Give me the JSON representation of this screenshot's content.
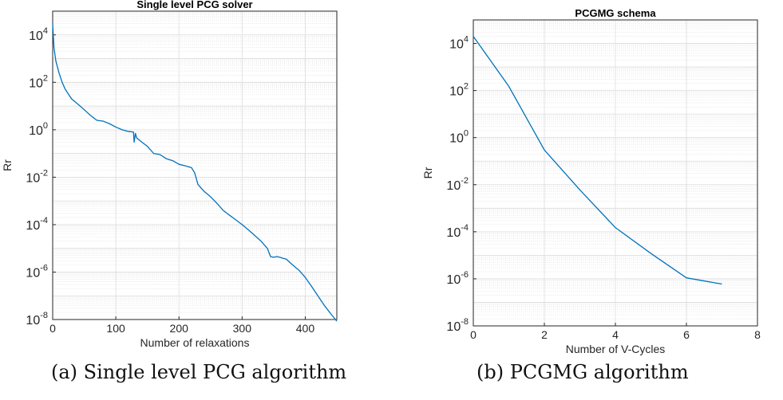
{
  "chart_data": [
    {
      "type": "line",
      "title": "Single level PCG solver",
      "xlabel": "Number of relaxations",
      "ylabel": "Rr",
      "yscale": "log",
      "xlim": [
        0,
        450
      ],
      "ylim": [
        1e-08,
        100000.0
      ],
      "xticks": [
        "0",
        "100",
        "200",
        "300",
        "400"
      ],
      "yticks": [
        "10^-8",
        "10^-6",
        "10^-4",
        "10^-2",
        "10^0",
        "10^2",
        "10^4"
      ],
      "grid": true,
      "line_color": "#0072BD",
      "series": [
        {
          "x": [
            0,
            2,
            5,
            10,
            15,
            20,
            30,
            40,
            50,
            60,
            70,
            80,
            90,
            100,
            110,
            120,
            128,
            129,
            131,
            133,
            140,
            150,
            160,
            170,
            180,
            190,
            200,
            210,
            220,
            225,
            230,
            235,
            240,
            250,
            260,
            270,
            280,
            290,
            300,
            310,
            320,
            330,
            340,
            345,
            350,
            355,
            360,
            365,
            370,
            380,
            390,
            400,
            410,
            420,
            430,
            440,
            450
          ],
          "y": [
            30000,
            3000,
            800,
            250,
            100,
            50,
            20,
            12,
            7,
            4,
            2.5,
            2.3,
            1.8,
            1.3,
            1,
            0.85,
            0.8,
            0.3,
            0.7,
            0.45,
            0.32,
            0.2,
            0.1,
            0.09,
            0.06,
            0.05,
            0.035,
            0.03,
            0.025,
            0.015,
            0.005,
            0.0035,
            0.0025,
            0.0015,
            0.0008,
            0.0004,
            0.00025,
            0.00016,
            0.0001,
            6e-05,
            3.5e-05,
            2e-05,
            1e-05,
            4.5e-06,
            4.2e-06,
            4.5e-06,
            4.2e-06,
            3.8e-06,
            3.5e-06,
            2e-06,
            1.2e-06,
            6e-07,
            2.5e-07,
            1e-07,
            4e-08,
            1.8e-08,
            8.5e-09
          ]
        }
      ]
    },
    {
      "type": "line",
      "title": "PCGMG schema",
      "xlabel": "Number of V-Cycles",
      "ylabel": "Rr",
      "yscale": "log",
      "xlim": [
        0,
        8
      ],
      "ylim": [
        1e-08,
        100000.0
      ],
      "xticks": [
        "0",
        "2",
        "4",
        "6",
        "8"
      ],
      "yticks": [
        "10^-8",
        "10^-6",
        "10^-4",
        "10^-2",
        "10^0",
        "10^2",
        "10^4"
      ],
      "grid": true,
      "line_color": "#0072BD",
      "series": [
        {
          "x": [
            0,
            1,
            2,
            3,
            4,
            5,
            6,
            7
          ],
          "y": [
            20000,
            150,
            0.3,
            0.006,
            0.00015,
            1.2e-05,
            1.1e-06,
            6e-07
          ]
        }
      ]
    }
  ],
  "captions": {
    "a": "(a) Single level PCG algorithm",
    "b": "(b) PCGMG algorithm"
  }
}
